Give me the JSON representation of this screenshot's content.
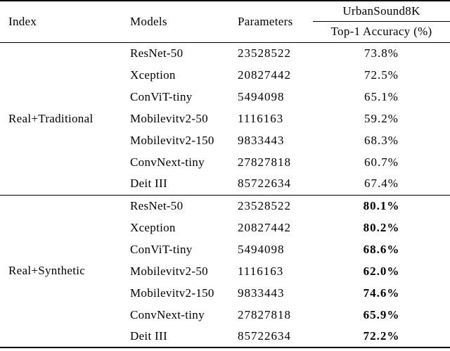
{
  "table": {
    "columns": {
      "index": "Index",
      "models": "Models",
      "parameters": "Parameters"
    },
    "group_header": "UrbanSound8K",
    "sub_header": "Top-1 Accuracy (%)",
    "text_color": "#000000",
    "background_color": "#ffffff",
    "sections": [
      {
        "index": "Real+Traditional",
        "rows": [
          {
            "model": "ResNet-50",
            "params": "23528522",
            "acc": "73.8%"
          },
          {
            "model": "Xception",
            "params": "20827442",
            "acc": "72.5%"
          },
          {
            "model": "ConViT-tiny",
            "params": "5494098",
            "acc": "65.1%"
          },
          {
            "model": "Mobilevitv2-50",
            "params": "1116163",
            "acc": "59.2%"
          },
          {
            "model": "Mobilevitv2-150",
            "params": "9833443",
            "acc": "68.3%"
          },
          {
            "model": "ConvNext-tiny",
            "params": "27827818",
            "acc": "60.7%"
          },
          {
            "model": "Deit III",
            "params": "85722634",
            "acc": "67.4%"
          }
        ]
      },
      {
        "index": "Real+Synthetic",
        "rows": [
          {
            "model": "ResNet-50",
            "params": "23528522",
            "acc": "80.1%"
          },
          {
            "model": "Xception",
            "params": "20827442",
            "acc": "80.2%"
          },
          {
            "model": "ConViT-tiny",
            "params": "5494098",
            "acc": "68.6%"
          },
          {
            "model": "Mobilevitv2-50",
            "params": "1116163",
            "acc": "62.0%"
          },
          {
            "model": "Mobilevitv2-150",
            "params": "9833443",
            "acc": "74.6%"
          },
          {
            "model": "ConvNext-tiny",
            "params": "27827818",
            "acc": "65.9%"
          },
          {
            "model": "Deit III",
            "params": "85722634",
            "acc": "72.2%"
          }
        ]
      }
    ]
  }
}
